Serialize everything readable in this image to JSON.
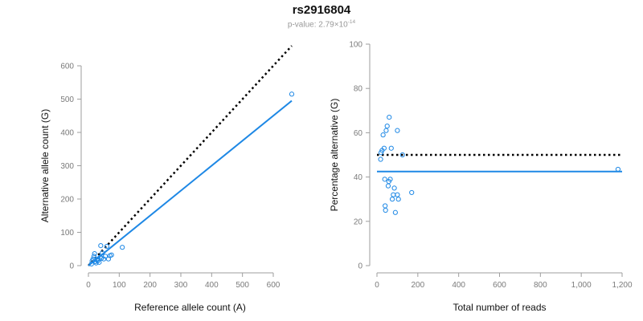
{
  "header": {
    "title": "rs2916804",
    "subtitle_prefix": "p-value: 2.79×10",
    "subtitle_exponent": "-14"
  },
  "colors": {
    "points": "#1e88e5",
    "fit_line": "#1e88e5",
    "reference_line": "#000000",
    "axis": "#9e9e9e",
    "tick_text": "#7a7a7a"
  },
  "chart_data": [
    {
      "type": "scatter",
      "xlabel": "Reference allele count (A)",
      "ylabel": "Alternative allele count (G)",
      "xlim": [
        0,
        660
      ],
      "ylim": [
        0,
        600
      ],
      "xticks": [
        0,
        100,
        200,
        300,
        400,
        500,
        600
      ],
      "yticks": [
        0,
        100,
        200,
        300,
        400,
        500,
        600
      ],
      "x_tick_labels": [
        "0",
        "100",
        "200",
        "300",
        "400",
        "500",
        "600"
      ],
      "y_tick_labels": [
        "0",
        "100",
        "200",
        "300",
        "400",
        "500",
        "600"
      ],
      "grid": false,
      "points": [
        [
          10,
          5
        ],
        [
          12,
          14
        ],
        [
          15,
          20
        ],
        [
          18,
          28
        ],
        [
          20,
          36
        ],
        [
          22,
          12
        ],
        [
          25,
          8
        ],
        [
          28,
          18
        ],
        [
          30,
          14
        ],
        [
          32,
          20
        ],
        [
          35,
          10
        ],
        [
          38,
          25
        ],
        [
          40,
          60
        ],
        [
          42,
          22
        ],
        [
          45,
          38
        ],
        [
          50,
          20
        ],
        [
          55,
          28
        ],
        [
          60,
          58
        ],
        [
          65,
          20
        ],
        [
          70,
          30
        ],
        [
          75,
          32
        ],
        [
          110,
          55
        ],
        [
          660,
          515
        ]
      ],
      "reference_line": {
        "style": "dotted",
        "color": "#000000",
        "points": [
          [
            0,
            0
          ],
          [
            660,
            660
          ]
        ]
      },
      "fit_line": {
        "style": "solid",
        "color": "#1e88e5",
        "points": [
          [
            0,
            0
          ],
          [
            660,
            495
          ]
        ]
      }
    },
    {
      "type": "scatter",
      "xlabel": "Total number of reads",
      "ylabel": "Percentage alternative (G)",
      "xlim": [
        0,
        1200
      ],
      "ylim": [
        0,
        100
      ],
      "xticks": [
        0,
        200,
        400,
        600,
        800,
        1000,
        1200
      ],
      "yticks": [
        0,
        20,
        40,
        60,
        80,
        100
      ],
      "x_tick_labels": [
        "0",
        "200",
        "400",
        "600",
        "800",
        "1,000",
        "1,200"
      ],
      "y_tick_labels": [
        "0",
        "20",
        "40",
        "60",
        "80",
        "100"
      ],
      "grid": false,
      "points": [
        [
          18,
          48
        ],
        [
          20,
          51
        ],
        [
          25,
          52
        ],
        [
          30,
          59
        ],
        [
          35,
          53
        ],
        [
          38,
          39
        ],
        [
          40,
          27
        ],
        [
          42,
          25
        ],
        [
          45,
          61
        ],
        [
          50,
          63
        ],
        [
          55,
          36
        ],
        [
          58,
          38
        ],
        [
          60,
          67
        ],
        [
          65,
          39
        ],
        [
          70,
          53
        ],
        [
          75,
          30
        ],
        [
          80,
          32
        ],
        [
          85,
          35
        ],
        [
          90,
          24
        ],
        [
          100,
          61
        ],
        [
          100,
          32
        ],
        [
          105,
          30
        ],
        [
          125,
          50
        ],
        [
          170,
          33
        ],
        [
          1180,
          43.5
        ]
      ],
      "reference_line": {
        "style": "dotted",
        "color": "#000000",
        "points": [
          [
            0,
            50
          ],
          [
            1200,
            50
          ]
        ]
      },
      "fit_line": {
        "style": "solid",
        "color": "#1e88e5",
        "points": [
          [
            0,
            42.5
          ],
          [
            1200,
            42.5
          ]
        ]
      }
    }
  ]
}
